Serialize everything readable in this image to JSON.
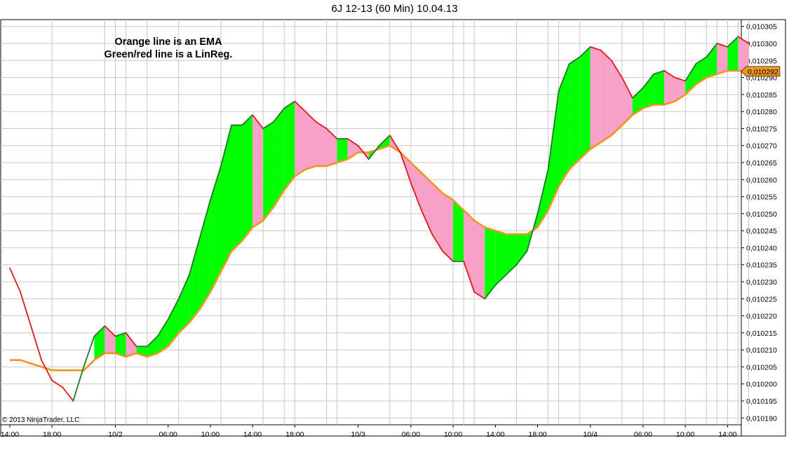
{
  "window": {
    "title": "6J 12-13 (60 Min)  10.04.13",
    "annotation_line1": "Orange line is an EMA",
    "annotation_line2": "Green/red line is a LinReg.",
    "copyright": "© 2013 NinjaTrader, LLC"
  },
  "chart_data": {
    "type": "line",
    "title": "6J 12-13 (60 Min)  10.04.13",
    "xlabel": "",
    "ylabel": "",
    "ylim": [
      0.010188,
      0.010307
    ],
    "grid": true,
    "y_axis_side": "right",
    "y_ticks": [
      "0,010305",
      "0,010300",
      "0,010295",
      "0,010290",
      "0,010285",
      "0,010280",
      "0,010275",
      "0,010270",
      "0,010265",
      "0,010260",
      "0,010255",
      "0,010250",
      "0,010245",
      "0,010240",
      "0,010235",
      "0,010230",
      "0,010225",
      "0,010220",
      "0,010215",
      "0,010210",
      "0,010205",
      "0,010200",
      "0,010195",
      "0,010190"
    ],
    "x_tick_labels": [
      "14:00",
      "18:00",
      "10/2",
      "06:00",
      "10:00",
      "14:00",
      "18:00",
      "10/3",
      "06:00",
      "10:00",
      "14:00",
      "18:00",
      "10/4",
      "06:00",
      "10:00",
      "14:00"
    ],
    "current_value_label": "0,010292",
    "colors": {
      "ema": "#f0961e",
      "linreg_up": "#1e7a1e",
      "linreg_down": "#e01818",
      "fill_up": "#00ff00",
      "fill_down": "#f7a0c8",
      "grid": "#c8c8c8",
      "price_marker": "#f0961e"
    },
    "series": [
      {
        "name": "EMA",
        "values": [
          {
            "x": "14:00",
            "y": 0.010207
          },
          {
            "x": "15:00",
            "y": 0.010207
          },
          {
            "x": "16:00",
            "y": 0.010206
          },
          {
            "x": "17:00",
            "y": 0.010205
          },
          {
            "x": "18:00",
            "y": 0.010204
          },
          {
            "x": "19:00",
            "y": 0.010204
          },
          {
            "x": "20:00",
            "y": 0.010204
          },
          {
            "x": "21:00",
            "y": 0.010204
          },
          {
            "x": "22:00",
            "y": 0.010207
          },
          {
            "x": "23:00",
            "y": 0.010209
          },
          {
            "x": "00:00",
            "y": 0.010209
          },
          {
            "x": "01:00",
            "y": 0.010208
          },
          {
            "x": "02:00",
            "y": 0.010209
          },
          {
            "x": "03:00",
            "y": 0.010208
          },
          {
            "x": "04:00",
            "y": 0.010209
          },
          {
            "x": "05:00",
            "y": 0.010211
          },
          {
            "x": "06:00",
            "y": 0.010215
          },
          {
            "x": "07:00",
            "y": 0.010218
          },
          {
            "x": "08:00",
            "y": 0.010222
          },
          {
            "x": "09:00",
            "y": 0.010227
          },
          {
            "x": "10:00",
            "y": 0.010233
          },
          {
            "x": "11:00",
            "y": 0.010239
          },
          {
            "x": "12:00",
            "y": 0.010242
          },
          {
            "x": "13:00",
            "y": 0.010246
          },
          {
            "x": "14:00",
            "y": 0.010248
          },
          {
            "x": "15:00",
            "y": 0.010252
          },
          {
            "x": "16:00",
            "y": 0.010257
          },
          {
            "x": "17:00",
            "y": 0.010261
          },
          {
            "x": "18:00",
            "y": 0.010263
          },
          {
            "x": "19:00",
            "y": 0.010264
          },
          {
            "x": "20:00",
            "y": 0.010264
          },
          {
            "x": "21:00",
            "y": 0.010265
          },
          {
            "x": "22:00",
            "y": 0.010266
          },
          {
            "x": "23:00",
            "y": 0.010268
          },
          {
            "x": "00:00",
            "y": 0.010268
          },
          {
            "x": "01:00",
            "y": 0.010269
          },
          {
            "x": "02:00",
            "y": 0.01027
          },
          {
            "x": "03:00",
            "y": 0.010268
          },
          {
            "x": "04:00",
            "y": 0.010265
          },
          {
            "x": "05:00",
            "y": 0.010262
          },
          {
            "x": "06:00",
            "y": 0.010259
          },
          {
            "x": "07:00",
            "y": 0.010256
          },
          {
            "x": "08:00",
            "y": 0.010254
          },
          {
            "x": "09:00",
            "y": 0.010251
          },
          {
            "x": "10:00",
            "y": 0.010248
          },
          {
            "x": "11:00",
            "y": 0.010246
          },
          {
            "x": "12:00",
            "y": 0.010245
          },
          {
            "x": "13:00",
            "y": 0.010244
          },
          {
            "x": "14:00",
            "y": 0.010244
          },
          {
            "x": "15:00",
            "y": 0.010244
          },
          {
            "x": "16:00",
            "y": 0.010246
          },
          {
            "x": "17:00",
            "y": 0.010251
          },
          {
            "x": "18:00",
            "y": 0.010258
          },
          {
            "x": "19:00",
            "y": 0.010263
          },
          {
            "x": "20:00",
            "y": 0.010266
          },
          {
            "x": "21:00",
            "y": 0.010269
          },
          {
            "x": "22:00",
            "y": 0.010271
          },
          {
            "x": "23:00",
            "y": 0.010273
          },
          {
            "x": "00:00",
            "y": 0.010276
          },
          {
            "x": "01:00",
            "y": 0.010279
          },
          {
            "x": "02:00",
            "y": 0.010281
          },
          {
            "x": "03:00",
            "y": 0.010282
          },
          {
            "x": "04:00",
            "y": 0.010282
          },
          {
            "x": "05:00",
            "y": 0.010283
          },
          {
            "x": "06:00",
            "y": 0.010285
          },
          {
            "x": "07:00",
            "y": 0.010288
          },
          {
            "x": "08:00",
            "y": 0.01029
          },
          {
            "x": "09:00",
            "y": 0.010291
          },
          {
            "x": "10:00",
            "y": 0.010292
          },
          {
            "x": "11:00",
            "y": 0.010292
          },
          {
            "x": "12:00",
            "y": 0.010292
          }
        ]
      },
      {
        "name": "LinReg",
        "values": [
          {
            "x": "14:00",
            "y": 0.010234
          },
          {
            "x": "15:00",
            "y": 0.010227
          },
          {
            "x": "16:00",
            "y": 0.010217
          },
          {
            "x": "17:00",
            "y": 0.010207
          },
          {
            "x": "18:00",
            "y": 0.010201
          },
          {
            "x": "19:00",
            "y": 0.010199
          },
          {
            "x": "20:00",
            "y": 0.010195
          },
          {
            "x": "21:00",
            "y": 0.010205
          },
          {
            "x": "22:00",
            "y": 0.010214
          },
          {
            "x": "23:00",
            "y": 0.010217
          },
          {
            "x": "00:00",
            "y": 0.010214
          },
          {
            "x": "01:00",
            "y": 0.010215
          },
          {
            "x": "02:00",
            "y": 0.010211
          },
          {
            "x": "03:00",
            "y": 0.010211
          },
          {
            "x": "04:00",
            "y": 0.010214
          },
          {
            "x": "05:00",
            "y": 0.010219
          },
          {
            "x": "06:00",
            "y": 0.010225
          },
          {
            "x": "07:00",
            "y": 0.010232
          },
          {
            "x": "08:00",
            "y": 0.010243
          },
          {
            "x": "09:00",
            "y": 0.010254
          },
          {
            "x": "10:00",
            "y": 0.010264
          },
          {
            "x": "11:00",
            "y": 0.010276
          },
          {
            "x": "12:00",
            "y": 0.010276
          },
          {
            "x": "13:00",
            "y": 0.010279
          },
          {
            "x": "14:00",
            "y": 0.010275
          },
          {
            "x": "15:00",
            "y": 0.010277
          },
          {
            "x": "16:00",
            "y": 0.010281
          },
          {
            "x": "17:00",
            "y": 0.010283
          },
          {
            "x": "18:00",
            "y": 0.01028
          },
          {
            "x": "19:00",
            "y": 0.010277
          },
          {
            "x": "20:00",
            "y": 0.010275
          },
          {
            "x": "21:00",
            "y": 0.010272
          },
          {
            "x": "22:00",
            "y": 0.010272
          },
          {
            "x": "23:00",
            "y": 0.01027
          },
          {
            "x": "00:00",
            "y": 0.010266
          },
          {
            "x": "01:00",
            "y": 0.01027
          },
          {
            "x": "02:00",
            "y": 0.010273
          },
          {
            "x": "03:00",
            "y": 0.010268
          },
          {
            "x": "04:00",
            "y": 0.010259
          },
          {
            "x": "05:00",
            "y": 0.010251
          },
          {
            "x": "06:00",
            "y": 0.010244
          },
          {
            "x": "07:00",
            "y": 0.010239
          },
          {
            "x": "08:00",
            "y": 0.010236
          },
          {
            "x": "09:00",
            "y": 0.010236
          },
          {
            "x": "10:00",
            "y": 0.010227
          },
          {
            "x": "11:00",
            "y": 0.010225
          },
          {
            "x": "12:00",
            "y": 0.010229
          },
          {
            "x": "13:00",
            "y": 0.010232
          },
          {
            "x": "14:00",
            "y": 0.010235
          },
          {
            "x": "15:00",
            "y": 0.010239
          },
          {
            "x": "16:00",
            "y": 0.01025
          },
          {
            "x": "17:00",
            "y": 0.010263
          },
          {
            "x": "18:00",
            "y": 0.010286
          },
          {
            "x": "19:00",
            "y": 0.010294
          },
          {
            "x": "20:00",
            "y": 0.010296
          },
          {
            "x": "21:00",
            "y": 0.010299
          },
          {
            "x": "22:00",
            "y": 0.010298
          },
          {
            "x": "23:00",
            "y": 0.010295
          },
          {
            "x": "00:00",
            "y": 0.01029
          },
          {
            "x": "01:00",
            "y": 0.010284
          },
          {
            "x": "02:00",
            "y": 0.010287
          },
          {
            "x": "03:00",
            "y": 0.010291
          },
          {
            "x": "04:00",
            "y": 0.010292
          },
          {
            "x": "05:00",
            "y": 0.01029
          },
          {
            "x": "06:00",
            "y": 0.010289
          },
          {
            "x": "07:00",
            "y": 0.010294
          },
          {
            "x": "08:00",
            "y": 0.010296
          },
          {
            "x": "09:00",
            "y": 0.0103
          },
          {
            "x": "10:00",
            "y": 0.010299
          },
          {
            "x": "11:00",
            "y": 0.010302
          },
          {
            "x": "12:00",
            "y": 0.0103
          }
        ]
      }
    ]
  }
}
